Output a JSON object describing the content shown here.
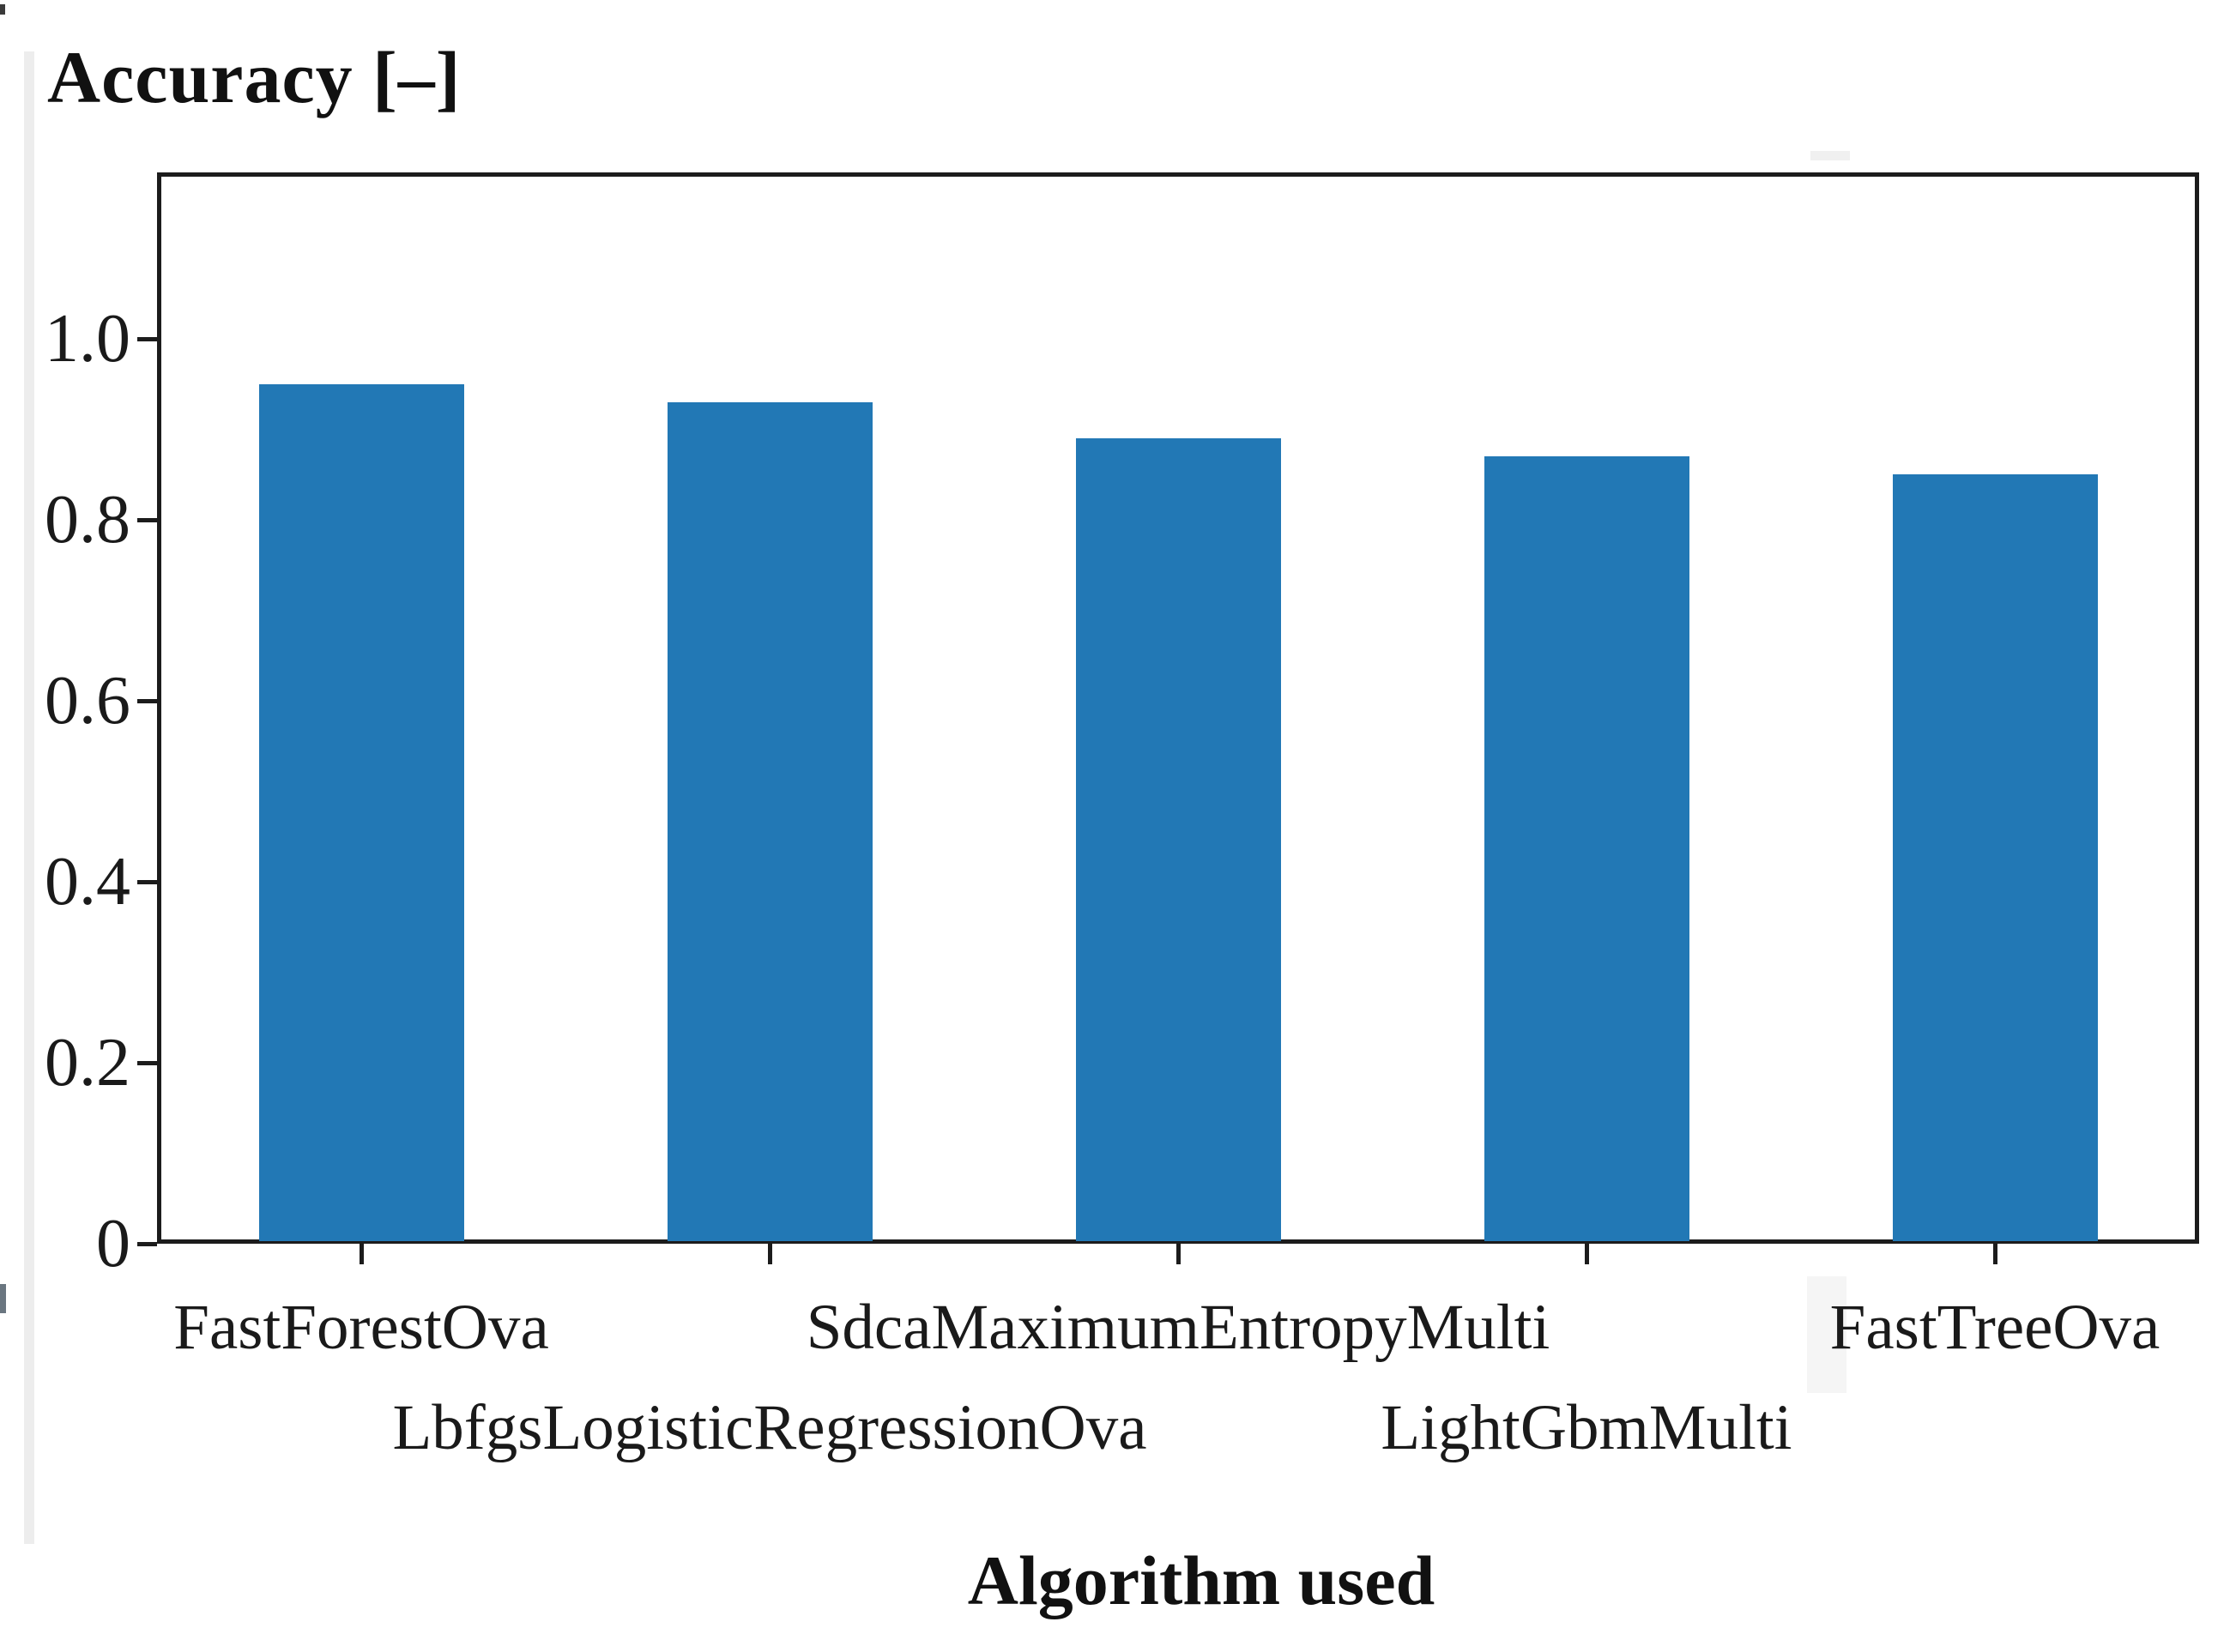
{
  "chart_data": {
    "type": "bar",
    "title": "Accuracy [–]",
    "xlabel": "Algorithm used",
    "ylabel": "Accuracy [–]",
    "categories": [
      "FastForestOva",
      "LbfgsLogisticRegressionOva",
      "SdcaMaximumEntropyMulti",
      "LightGbmMulti",
      "FastTreeOva"
    ],
    "values": [
      0.95,
      0.93,
      0.89,
      0.87,
      0.85
    ],
    "yticks": [
      0,
      0.2,
      0.4,
      0.6,
      0.8,
      1.0
    ],
    "ytick_labels": [
      "0",
      "0.2",
      "0.4",
      "0.6",
      "0.8",
      "1.0"
    ],
    "ylim": [
      0,
      1.18
    ],
    "bar_color": "#2278b5",
    "axis_color": "#1c1c1c",
    "grid": false,
    "legend": "none",
    "x_labels_staggered": true
  }
}
